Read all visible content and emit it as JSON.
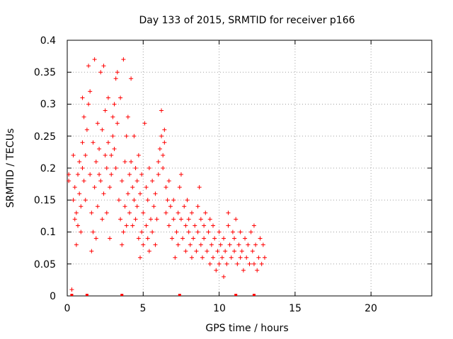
{
  "chart_data": {
    "type": "scatter",
    "title": "Day 133 of 2015, SRMTID for receiver p166",
    "xlabel": "GPS time / hours",
    "ylabel": "SRMTID / TECUs",
    "xlim": [
      0,
      24
    ],
    "ylim": [
      0,
      0.4
    ],
    "xticks": [
      "0",
      "5",
      "10",
      "15",
      "20"
    ],
    "xtick_values": [
      0,
      5,
      10,
      15,
      20
    ],
    "yticks": [
      "0",
      "0.05",
      "0.1",
      "0.15",
      "0.2",
      "0.25",
      "0.3",
      "0.35",
      "0.4"
    ],
    "ytick_values": [
      0,
      0.05,
      0.1,
      0.15,
      0.2,
      0.25,
      0.3,
      0.35,
      0.4
    ],
    "grid": true,
    "marker": "+",
    "color": "#ff0000",
    "series": [
      {
        "name": "SRMTID",
        "points": [
          [
            0.1,
            0.18
          ],
          [
            0.1,
            0.19
          ],
          [
            0.3,
            0.01
          ],
          [
            0.4,
            0.22
          ],
          [
            0.4,
            0.15
          ],
          [
            0.5,
            0.12
          ],
          [
            0.5,
            0.17
          ],
          [
            0.6,
            0.08
          ],
          [
            0.6,
            0.13
          ],
          [
            0.7,
            0.19
          ],
          [
            0.7,
            0.11
          ],
          [
            0.8,
            0.16
          ],
          [
            0.8,
            0.21
          ],
          [
            0.9,
            0.14
          ],
          [
            0.9,
            0.1
          ],
          [
            1.0,
            0.31
          ],
          [
            1.0,
            0.2
          ],
          [
            1.0,
            0.24
          ],
          [
            1.1,
            0.28
          ],
          [
            1.1,
            0.18
          ],
          [
            1.2,
            0.22
          ],
          [
            1.2,
            0.15
          ],
          [
            1.3,
            0.26
          ],
          [
            1.4,
            0.36
          ],
          [
            1.4,
            0.3
          ],
          [
            1.5,
            0.19
          ],
          [
            1.5,
            0.32
          ],
          [
            1.6,
            0.07
          ],
          [
            1.6,
            0.13
          ],
          [
            1.7,
            0.1
          ],
          [
            1.7,
            0.24
          ],
          [
            1.8,
            0.37
          ],
          [
            1.8,
            0.17
          ],
          [
            1.9,
            0.21
          ],
          [
            1.9,
            0.09
          ],
          [
            2.0,
            0.27
          ],
          [
            2.0,
            0.14
          ],
          [
            2.1,
            0.19
          ],
          [
            2.1,
            0.23
          ],
          [
            2.2,
            0.35
          ],
          [
            2.2,
            0.18
          ],
          [
            2.3,
            0.12
          ],
          [
            2.3,
            0.26
          ],
          [
            2.4,
            0.36
          ],
          [
            2.4,
            0.16
          ],
          [
            2.5,
            0.22
          ],
          [
            2.5,
            0.29
          ],
          [
            2.6,
            0.2
          ],
          [
            2.6,
            0.13
          ],
          [
            2.7,
            0.31
          ],
          [
            2.7,
            0.24
          ],
          [
            2.8,
            0.09
          ],
          [
            2.8,
            0.17
          ],
          [
            2.9,
            0.22
          ],
          [
            2.9,
            0.19
          ],
          [
            3.0,
            0.28
          ],
          [
            3.0,
            0.25
          ],
          [
            3.1,
            0.23
          ],
          [
            3.1,
            0.3
          ],
          [
            3.2,
            0.34
          ],
          [
            3.2,
            0.2
          ],
          [
            3.3,
            0.35
          ],
          [
            3.3,
            0.27
          ],
          [
            3.4,
            0.15
          ],
          [
            3.5,
            0.12
          ],
          [
            3.5,
            0.31
          ],
          [
            3.6,
            0.08
          ],
          [
            3.6,
            0.18
          ],
          [
            3.7,
            0.37
          ],
          [
            3.7,
            0.1
          ],
          [
            3.8,
            0.14
          ],
          [
            3.8,
            0.21
          ],
          [
            3.9,
            0.25
          ],
          [
            3.9,
            0.11
          ],
          [
            4.0,
            0.16
          ],
          [
            4.0,
            0.28
          ],
          [
            4.1,
            0.19
          ],
          [
            4.1,
            0.13
          ],
          [
            4.2,
            0.34
          ],
          [
            4.2,
            0.21
          ],
          [
            4.3,
            0.17
          ],
          [
            4.3,
            0.11
          ],
          [
            4.4,
            0.15
          ],
          [
            4.4,
            0.25
          ],
          [
            4.5,
            0.2
          ],
          [
            4.5,
            0.12
          ],
          [
            4.6,
            0.18
          ],
          [
            4.6,
            0.14
          ],
          [
            4.7,
            0.09
          ],
          [
            4.7,
            0.22
          ],
          [
            4.8,
            0.06
          ],
          [
            4.8,
            0.16
          ],
          [
            4.9,
            0.1
          ],
          [
            4.9,
            0.19
          ],
          [
            5.0,
            0.08
          ],
          [
            5.0,
            0.13
          ],
          [
            5.1,
            0.27
          ],
          [
            5.2,
            0.11
          ],
          [
            5.2,
            0.17
          ],
          [
            5.3,
            0.09
          ],
          [
            5.3,
            0.15
          ],
          [
            5.4,
            0.2
          ],
          [
            5.4,
            0.07
          ],
          [
            5.5,
            0.12
          ],
          [
            5.6,
            0.18
          ],
          [
            5.6,
            0.1
          ],
          [
            5.7,
            0.14
          ],
          [
            5.8,
            0.08
          ],
          [
            5.8,
            0.16
          ],
          [
            5.9,
            0.12
          ],
          [
            6.0,
            0.21
          ],
          [
            6.0,
            0.19
          ],
          [
            6.1,
            0.23
          ],
          [
            6.2,
            0.29
          ],
          [
            6.2,
            0.25
          ],
          [
            6.3,
            0.22
          ],
          [
            6.3,
            0.2
          ],
          [
            6.4,
            0.26
          ],
          [
            6.4,
            0.24
          ],
          [
            6.5,
            0.17
          ],
          [
            6.5,
            0.13
          ],
          [
            6.6,
            0.15
          ],
          [
            6.7,
            0.11
          ],
          [
            6.7,
            0.18
          ],
          [
            6.8,
            0.14
          ],
          [
            6.9,
            0.09
          ],
          [
            7.0,
            0.12
          ],
          [
            7.0,
            0.15
          ],
          [
            7.1,
            0.06
          ],
          [
            7.2,
            0.1
          ],
          [
            7.3,
            0.13
          ],
          [
            7.3,
            0.08
          ],
          [
            7.4,
            0.17
          ],
          [
            7.5,
            0.19
          ],
          [
            7.5,
            0.12
          ],
          [
            7.6,
            0.09
          ],
          [
            7.7,
            0.14
          ],
          [
            7.8,
            0.11
          ],
          [
            7.8,
            0.07
          ],
          [
            7.9,
            0.15
          ],
          [
            8.0,
            0.1
          ],
          [
            8.0,
            0.12
          ],
          [
            8.1,
            0.08
          ],
          [
            8.2,
            0.13
          ],
          [
            8.2,
            0.06
          ],
          [
            8.3,
            0.09
          ],
          [
            8.4,
            0.11
          ],
          [
            8.5,
            0.07
          ],
          [
            8.6,
            0.14
          ],
          [
            8.6,
            0.1
          ],
          [
            8.7,
            0.17
          ],
          [
            8.8,
            0.12
          ],
          [
            8.8,
            0.08
          ],
          [
            8.9,
            0.06
          ],
          [
            9.0,
            0.11
          ],
          [
            9.0,
            0.09
          ],
          [
            9.1,
            0.13
          ],
          [
            9.2,
            0.07
          ],
          [
            9.3,
            0.1
          ],
          [
            9.4,
            0.05
          ],
          [
            9.4,
            0.12
          ],
          [
            9.5,
            0.08
          ],
          [
            9.6,
            0.06
          ],
          [
            9.6,
            0.11
          ],
          [
            9.7,
            0.09
          ],
          [
            9.8,
            0.04
          ],
          [
            9.9,
            0.07
          ],
          [
            10.0,
            0.05
          ],
          [
            10.0,
            0.1
          ],
          [
            10.1,
            0.08
          ],
          [
            10.2,
            0.06
          ],
          [
            10.3,
            0.03
          ],
          [
            10.3,
            0.09
          ],
          [
            10.4,
            0.07
          ],
          [
            10.5,
            0.05
          ],
          [
            10.6,
            0.11
          ],
          [
            10.6,
            0.13
          ],
          [
            10.7,
            0.08
          ],
          [
            10.8,
            0.06
          ],
          [
            10.9,
            0.1
          ],
          [
            11.0,
            0.07
          ],
          [
            11.0,
            0.09
          ],
          [
            11.1,
            0.12
          ],
          [
            11.2,
            0.05
          ],
          [
            11.3,
            0.08
          ],
          [
            11.4,
            0.06
          ],
          [
            11.4,
            0.1
          ],
          [
            11.5,
            0.07
          ],
          [
            11.6,
            0.04
          ],
          [
            11.7,
            0.09
          ],
          [
            11.8,
            0.06
          ],
          [
            11.9,
            0.08
          ],
          [
            12.0,
            0.05
          ],
          [
            12.1,
            0.1
          ],
          [
            12.2,
            0.07
          ],
          [
            12.3,
            0.11
          ],
          [
            12.3,
            0.05
          ],
          [
            12.4,
            0.08
          ],
          [
            12.5,
            0.04
          ],
          [
            12.6,
            0.06
          ],
          [
            12.7,
            0.09
          ],
          [
            12.8,
            0.05
          ],
          [
            12.9,
            0.08
          ],
          [
            13.0,
            0.06
          ]
        ]
      }
    ],
    "baseline_markers_x": [
      0.3,
      1.3,
      3.6,
      7.4,
      11.1,
      12.3
    ]
  }
}
